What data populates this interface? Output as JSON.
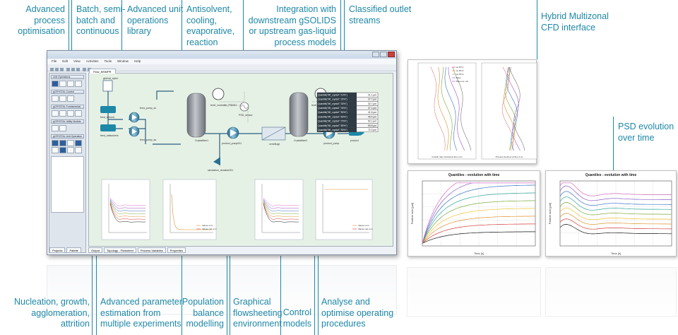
{
  "callouts_top": {
    "c1": [
      "Advanced process",
      "optimisation"
    ],
    "c2": [
      "Batch, semi-",
      "batch and",
      "continuous"
    ],
    "c3": [
      "Advanced unit",
      "operations",
      "library"
    ],
    "c4": [
      "Antisolvent,",
      "cooling,",
      "evaporative,",
      "reaction"
    ],
    "c5": [
      "Integration with",
      "downstream gSOLIDS",
      "or upstream gas-liquid",
      "process models"
    ],
    "c6": [
      "Classified outlet",
      "streams"
    ]
  },
  "callouts_right": {
    "cfd": [
      "Hybrid Multizonal",
      "CFD interface"
    ],
    "psd": [
      "PSD evolution",
      "over time"
    ]
  },
  "callouts_bottom": {
    "b1": [
      "Nucleation, growth,",
      "agglomeration,",
      "attrition"
    ],
    "b2": [
      "Advanced parameter",
      "estimation from",
      "multiple experiments"
    ],
    "b3": [
      "Population",
      "balance",
      "modelling"
    ],
    "b4": [
      "Graphical",
      "flowsheeting",
      "environment"
    ],
    "b5": [
      "Control",
      "models"
    ],
    "b6": [
      "Analyse and",
      "optimise operating",
      "procedures"
    ]
  },
  "app": {
    "menu": [
      "File",
      "Edit",
      "View",
      "Activities",
      "Tools",
      "Window",
      "Help"
    ],
    "palette_sections": [
      "Unit Operations",
      "gCRYSTAL Control",
      "gCRYSTAL Fundamental",
      "gCRYSTAL Utility Models",
      "gCRYSTAL Unit Operation"
    ],
    "canvas_tab": "Flow_MSMPR",
    "status_tabs": [
      "Output",
      "Topology - Flowsheet",
      "Process Variables",
      "Properties"
    ],
    "project_tabs": [
      "Projects",
      "Palette"
    ],
    "units": {
      "solvent": "feed_solvent",
      "feed_pump_ss": "feed_pump_ss",
      "feed_pump_as": "feed_pump_as",
      "antisolvent": "feed_antisolvent",
      "cryst1": "Crystalliser1",
      "cryst2": "Crystalliser2",
      "pump_mid": "product_pump001",
      "product_pump": "product_pump",
      "lc1": "LC",
      "lc2": "LC",
      "ctrl1": "level_controller_PID001",
      "ctrl2": "level_controller_PID002",
      "psd1": "PSD_sensor",
      "psd2": "PSD_sensor001",
      "filter": "centrifuge",
      "sim": "simulation_duration001",
      "product": "product",
      "global": "global_spec"
    },
    "table_rows": [
      [
        "Quantile(\"Mf_crystal\",\"10%\")",
        "21.1 µm"
      ],
      [
        "Quantile(\"Mf_crystal\",\"20%\")",
        "27.7 µm"
      ],
      [
        "Quantile(\"Mf_crystal\",\"30%\")",
        "32.7 µm"
      ],
      [
        "Quantile(\"Mf_crystal\",\"40%\")",
        "37.1 µm"
      ],
      [
        "Quantile(\"Mf_crystal\",\"50%\")",
        "41.5 µm"
      ],
      [
        "Quantile(\"Mf_crystal\",\"60%\")",
        "46.4 µm"
      ],
      [
        "Quantile(\"Mf_crystal\",\"70%\")",
        "52.1 µm"
      ],
      [
        "Quantile(\"Mf_crystal\",\"80%\")",
        "59.8 µm"
      ],
      [
        "Quantile(\"Mf_crystal\",\"90%\")",
        "72.3 µm"
      ]
    ],
    "plot_legend": [
      "Values vnm",
      "Values nat vnm"
    ]
  },
  "cfd": {
    "legend": [
      "as P0=1",
      "as P0=2",
      "as P0=3",
      "as P0=4",
      "Base",
      "Base exc. sat"
    ],
    "xlabel1": "Growth rate/ Vertical at flux (1-1)",
    "xlabel2": "Process linetime/ at flux (1-1)"
  },
  "psd_panels": {
    "title": "Quantiles - evolution with time",
    "xlabel": "Time [s]",
    "ylabel": "Particle size [µm]"
  },
  "colors": {
    "accent": "#1e88a8",
    "canvas": "#e6f1e6",
    "vessel": "#8b8f96"
  }
}
